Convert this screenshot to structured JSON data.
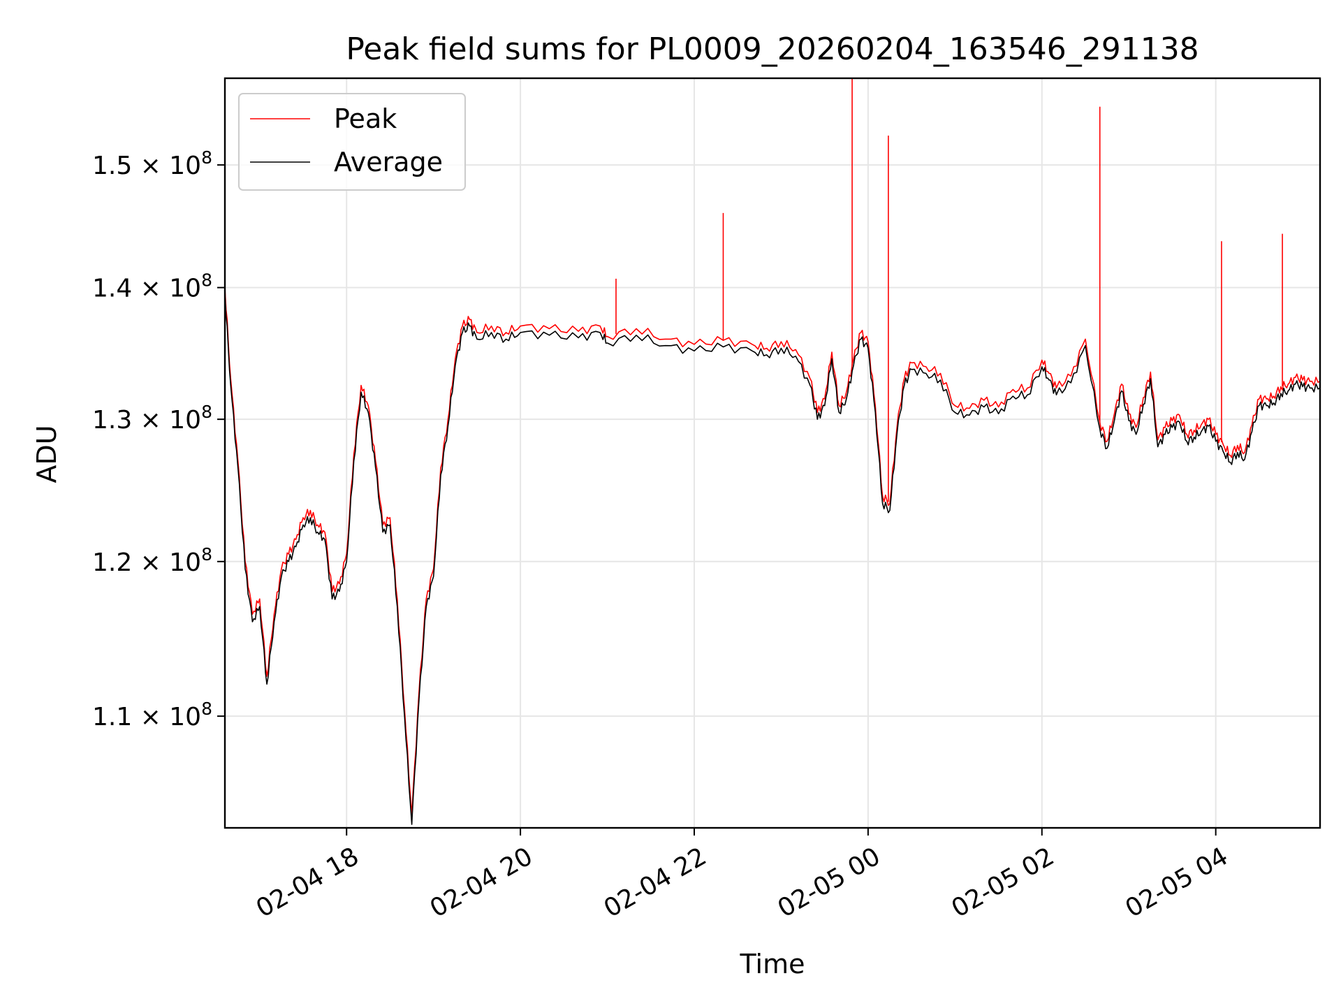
{
  "chart_data": {
    "type": "line",
    "title": "Peak field sums for PL0009_20260204_163546_291138",
    "xlabel": "Time",
    "ylabel": "ADU",
    "y_scale": "log",
    "ylim": [
      103300000,
      157500000
    ],
    "xlim": [
      "2026-02-04 16:36",
      "2026-02-05 05:12"
    ],
    "grid": true,
    "legend_position": "top-left",
    "x_ticks": [
      {
        "t": "2026-02-04 18:00",
        "label": "02-04 18"
      },
      {
        "t": "2026-02-04 20:00",
        "label": "02-04 20"
      },
      {
        "t": "2026-02-04 22:00",
        "label": "02-04 22"
      },
      {
        "t": "2026-02-05 00:00",
        "label": "02-05 00"
      },
      {
        "t": "2026-02-05 02:00",
        "label": "02-05 02"
      },
      {
        "t": "2026-02-05 04:00",
        "label": "02-05 04"
      }
    ],
    "y_ticks": [
      {
        "value": 110000000,
        "mantissa": "1.1",
        "exponent": "8"
      },
      {
        "value": 120000000,
        "mantissa": "1.2",
        "exponent": "8"
      },
      {
        "value": 130000000,
        "mantissa": "1.3",
        "exponent": "8"
      },
      {
        "value": 140000000,
        "mantissa": "1.4",
        "exponent": "8"
      },
      {
        "value": 150000000,
        "mantissa": "1.5",
        "exponent": "8"
      }
    ],
    "times": [
      "2026-02-04 16:36",
      "2026-02-04 16:40",
      "2026-02-04 16:45",
      "2026-02-04 16:50",
      "2026-02-04 16:55",
      "2026-02-04 17:00",
      "2026-02-04 17:05",
      "2026-02-04 17:10",
      "2026-02-04 17:15",
      "2026-02-04 17:20",
      "2026-02-04 17:25",
      "2026-02-04 17:30",
      "2026-02-04 17:35",
      "2026-02-04 17:40",
      "2026-02-04 17:45",
      "2026-02-04 17:50",
      "2026-02-04 17:55",
      "2026-02-04 18:00",
      "2026-02-04 18:05",
      "2026-02-04 18:10",
      "2026-02-04 18:15",
      "2026-02-04 18:20",
      "2026-02-04 18:25",
      "2026-02-04 18:30",
      "2026-02-04 18:35",
      "2026-02-04 18:40",
      "2026-02-04 18:45",
      "2026-02-04 18:50",
      "2026-02-04 18:55",
      "2026-02-04 19:00",
      "2026-02-04 19:05",
      "2026-02-04 19:10",
      "2026-02-04 19:15",
      "2026-02-04 19:20",
      "2026-02-04 19:25",
      "2026-02-04 19:30",
      "2026-02-04 19:40",
      "2026-02-04 19:50",
      "2026-02-04 20:00",
      "2026-02-04 20:20",
      "2026-02-04 20:40",
      "2026-02-04 20:55",
      "2026-02-04 21:00",
      "2026-02-04 21:20",
      "2026-02-04 21:40",
      "2026-02-04 22:00",
      "2026-02-04 22:20",
      "2026-02-04 22:40",
      "2026-02-04 22:50",
      "2026-02-04 23:00",
      "2026-02-04 23:10",
      "2026-02-04 23:20",
      "2026-02-04 23:25",
      "2026-02-04 23:30",
      "2026-02-04 23:35",
      "2026-02-04 23:40",
      "2026-02-04 23:45",
      "2026-02-04 23:50",
      "2026-02-04 23:55",
      "2026-02-05 00:00",
      "2026-02-05 00:05",
      "2026-02-05 00:10",
      "2026-02-05 00:15",
      "2026-02-05 00:20",
      "2026-02-05 00:25",
      "2026-02-05 00:30",
      "2026-02-05 00:40",
      "2026-02-05 00:50",
      "2026-02-05 01:00",
      "2026-02-05 01:10",
      "2026-02-05 01:20",
      "2026-02-05 01:30",
      "2026-02-05 01:40",
      "2026-02-05 01:50",
      "2026-02-05 02:00",
      "2026-02-05 02:05",
      "2026-02-05 02:10",
      "2026-02-05 02:20",
      "2026-02-05 02:30",
      "2026-02-05 02:40",
      "2026-02-05 02:45",
      "2026-02-05 02:50",
      "2026-02-05 02:55",
      "2026-02-05 03:00",
      "2026-02-05 03:05",
      "2026-02-05 03:10",
      "2026-02-05 03:15",
      "2026-02-05 03:20",
      "2026-02-05 03:25",
      "2026-02-05 03:30",
      "2026-02-05 03:35",
      "2026-02-05 03:40",
      "2026-02-05 03:45",
      "2026-02-05 03:50",
      "2026-02-05 03:55",
      "2026-02-05 04:00",
      "2026-02-05 04:05",
      "2026-02-05 04:10",
      "2026-02-05 04:15",
      "2026-02-05 04:20",
      "2026-02-05 04:25",
      "2026-02-05 04:30",
      "2026-02-05 04:35",
      "2026-02-05 04:40",
      "2026-02-05 04:45",
      "2026-02-05 04:50",
      "2026-02-05 04:55",
      "2026-02-05 05:00",
      "2026-02-05 05:05",
      "2026-02-05 05:12"
    ],
    "series": [
      {
        "name": "Peak",
        "color": "#ff0000",
        "values": [
          140000000,
          133000000,
          127000000,
          120000000,
          116500000,
          117500000,
          112500000,
          116500000,
          119500000,
          120500000,
          121500000,
          123000000,
          123500000,
          122500000,
          122000000,
          118000000,
          118500000,
          120500000,
          127500000,
          132500000,
          131000000,
          127000000,
          122500000,
          123000000,
          117500000,
          110500000,
          104000000,
          111500000,
          117500000,
          119500000,
          126500000,
          130000000,
          134500000,
          137000000,
          137500000,
          136500000,
          137000000,
          136500000,
          137000000,
          136800000,
          136600000,
          137000000,
          136200000,
          136800000,
          136000000,
          135600000,
          135900000,
          135600000,
          135300000,
          135800000,
          135200000,
          133000000,
          130500000,
          131500000,
          135000000,
          131000000,
          132000000,
          134500000,
          136500000,
          135800000,
          131000000,
          124500000,
          124000000,
          129500000,
          133000000,
          134200000,
          133900000,
          133400000,
          131000000,
          130800000,
          131400000,
          130900000,
          132200000,
          132300000,
          134400000,
          133400000,
          132300000,
          133200000,
          136000000,
          129800000,
          128400000,
          130400000,
          132600000,
          130400000,
          129400000,
          131600000,
          133500000,
          128500000,
          129400000,
          129900000,
          130300000,
          128900000,
          129200000,
          129600000,
          130000000,
          128900000,
          128200000,
          127400000,
          128100000,
          127600000,
          129600000,
          131500000,
          131500000,
          131700000,
          132400000,
          132600000,
          133100000,
          132900000,
          132800000,
          132800000
        ]
      },
      {
        "name": "Average",
        "color": "#000000",
        "values": [
          139500000,
          132500000,
          126500000,
          119500000,
          116000000,
          117000000,
          112000000,
          116000000,
          119000000,
          120000000,
          121000000,
          122500000,
          123000000,
          122000000,
          121500000,
          117500000,
          118000000,
          120000000,
          127000000,
          132000000,
          130500000,
          126500000,
          122000000,
          122500000,
          117000000,
          110000000,
          103500000,
          111000000,
          117000000,
          119000000,
          126000000,
          129500000,
          134000000,
          136500000,
          137000000,
          136000000,
          136500000,
          136000000,
          136500000,
          136300000,
          136100000,
          136500000,
          135700000,
          136300000,
          135500000,
          135100000,
          135400000,
          135100000,
          134800000,
          135300000,
          134700000,
          132500000,
          130000000,
          131000000,
          134500000,
          130500000,
          131500000,
          134000000,
          136000000,
          135300000,
          130500000,
          124000000,
          123500000,
          129000000,
          132500000,
          133700000,
          133400000,
          132900000,
          130500000,
          130300000,
          130900000,
          130400000,
          131700000,
          131800000,
          133900000,
          132900000,
          131800000,
          132700000,
          135500000,
          129300000,
          127900000,
          129900000,
          132100000,
          129900000,
          128900000,
          131100000,
          133000000,
          128000000,
          128900000,
          129400000,
          129800000,
          128400000,
          128700000,
          129100000,
          129500000,
          128400000,
          127700000,
          126900000,
          127600000,
          127100000,
          129100000,
          131000000,
          131000000,
          131200000,
          131900000,
          132100000,
          132600000,
          132400000,
          132300000,
          132300000
        ]
      }
    ],
    "peak_spikes": [
      {
        "t": "2026-02-04 21:06",
        "value": 140700000
      },
      {
        "t": "2026-02-04 22:20",
        "value": 146000000
      },
      {
        "t": "2026-02-04 23:49",
        "value": 157500000
      },
      {
        "t": "2026-02-05 00:14",
        "value": 152500000
      },
      {
        "t": "2026-02-05 02:40",
        "value": 155000000
      },
      {
        "t": "2026-02-05 04:04",
        "value": 143700000
      },
      {
        "t": "2026-02-05 04:46",
        "value": 144300000
      }
    ]
  }
}
